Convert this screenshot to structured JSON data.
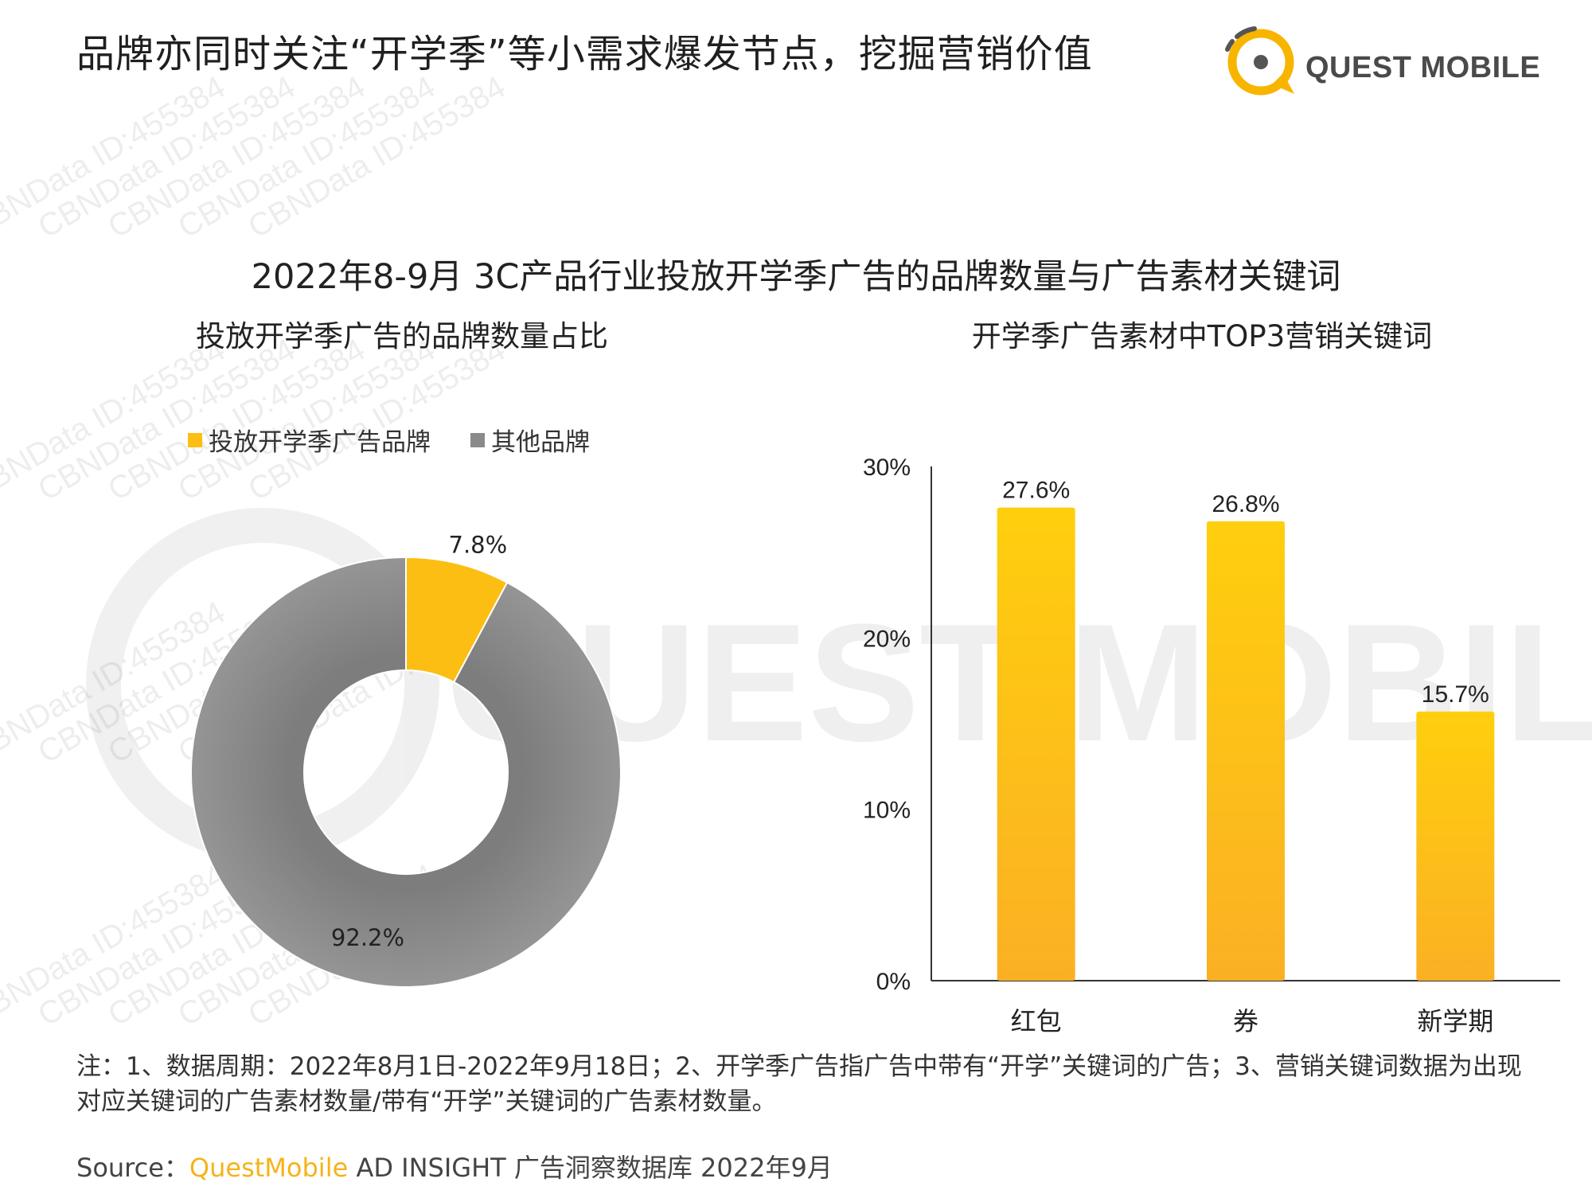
{
  "page": {
    "title": "品牌亦同时关注“开学季”等小需求爆发节点，挖掘营销价值",
    "logo_text": "QUEST MOBILE",
    "main_title": "2022年8-9月 3C产品行业投放开学季广告的品牌数量与广告素材关键词",
    "watermark_text": "CBNData ID:455384",
    "notes": "注：1、数据周期：2022年8月1日-2022年9月18日；2、开学季广告指广告中带有“开学”关键词的广告；3、营销关键词数据为出现对应关键词的广告素材数量/带有“开学”关键词的广告素材数量。",
    "source_prefix": "Source：",
    "source_brand": "QuestMobile",
    "source_rest": " AD INSIGHT 广告洞察数据库 2022年9月"
  },
  "colors": {
    "accent": "#f5b31a",
    "gray": "#8a8a8a",
    "bar_top": "#ffcf0d",
    "bar_bottom": "#fbb024"
  },
  "chart_data": [
    {
      "type": "pie",
      "subtitle": "投放开学季广告的品牌数量占比",
      "legend_position": "top-left",
      "slices": [
        {
          "name": "投放开学季广告品牌",
          "value": 7.8,
          "label": "7.8%",
          "color": "#fcbe13"
        },
        {
          "name": "其他品牌",
          "value": 92.2,
          "label": "92.2%",
          "color": "#8a8a8a"
        }
      ]
    },
    {
      "type": "bar",
      "subtitle": "开学季广告素材中TOP3营销关键词",
      "categories": [
        "红包",
        "券",
        "新学期"
      ],
      "values": [
        27.6,
        26.8,
        15.7
      ],
      "value_labels": [
        "27.6%",
        "26.8%",
        "15.7%"
      ],
      "ylim": [
        0,
        30
      ],
      "yticks": [
        0,
        10,
        20,
        30
      ],
      "ytick_labels": [
        "0%",
        "10%",
        "20%",
        "30%"
      ],
      "grid": false
    }
  ]
}
